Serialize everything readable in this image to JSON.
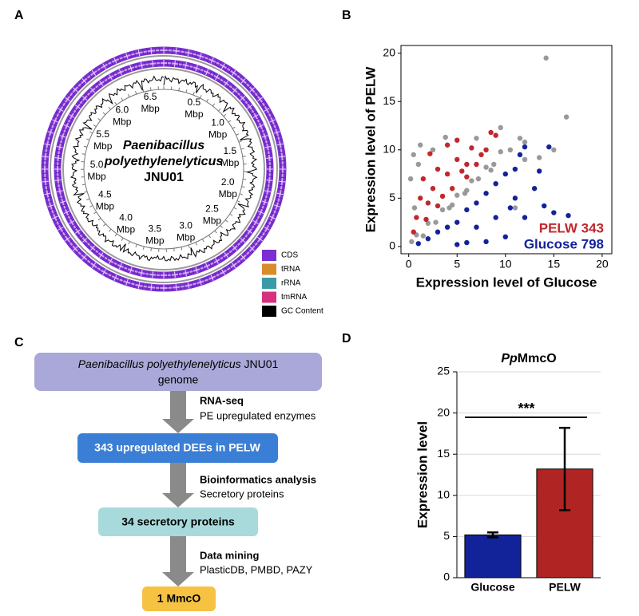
{
  "panels": [
    "A",
    "B",
    "C",
    "D"
  ],
  "genome": {
    "name_line1": "Paenibacillus",
    "name_line2": "polyethylenelyticus",
    "name_line3": "JNU01",
    "ticks": [
      "0.5",
      "1.0",
      "1.5",
      "2.0",
      "2.5",
      "3.0",
      "3.5",
      "4.0",
      "4.5",
      "5.0",
      "5.5",
      "6.0",
      "6.5"
    ],
    "tick_unit": "Mbp",
    "legend": [
      {
        "name": "CDS",
        "color": "#7b2fd0"
      },
      {
        "name": "tRNA",
        "color": "#d98c2b"
      },
      {
        "name": "rRNA",
        "color": "#3a9aa8"
      },
      {
        "name": "tmRNA",
        "color": "#d6337f"
      },
      {
        "name": "GC Content",
        "color": "#000000"
      }
    ]
  },
  "flowchart": {
    "start": {
      "italic": "Paenibacillus polyethylenelyticus",
      "rest": "JNU01",
      "line2": "genome"
    },
    "steps": [
      {
        "method": "RNA-seq",
        "detail": "PE upregulated enzymes",
        "result": "343 upregulated DEEs in PELW"
      },
      {
        "method": "Bioinformatics analysis",
        "detail": "Secretory proteins",
        "result": "34 secretory proteins"
      },
      {
        "method": "Data mining",
        "detail": "PlasticDB, PMBD, PAZY",
        "result": "1 MmcO"
      }
    ]
  },
  "chart_data": [
    {
      "type": "scatter",
      "x_label": "Expression level of Glucose",
      "y_label": "Expression level of PELW",
      "xlim": [
        -0.8,
        21
      ],
      "ylim": [
        -0.75,
        20.8
      ],
      "xticks": [
        0,
        5,
        10,
        15,
        20
      ],
      "yticks": [
        0,
        5,
        10,
        15,
        20
      ],
      "series": [
        {
          "color": "#999999",
          "x": [
            0.3,
            0.8,
            1.5,
            2,
            2.8,
            3.5,
            4.2,
            5,
            5.8,
            6.5,
            7.2,
            8,
            8.8,
            9.5,
            10.5,
            11.5,
            12,
            14.2,
            16.3,
            13.5,
            1,
            0.5,
            2.5,
            3.8,
            7,
            9.5,
            12,
            15,
            0.6,
            11,
            0.2,
            1.2,
            4.5,
            6,
            8.5
          ],
          "values": [
            0.5,
            1.2,
            1.1,
            2.4,
            2.5,
            3.8,
            4,
            5.3,
            5.5,
            6.8,
            7,
            8.2,
            8.5,
            9.8,
            10,
            11.2,
            10.8,
            19.5,
            13.4,
            9.2,
            8.5,
            9.5,
            10,
            11.3,
            11.2,
            12.3,
            9,
            10,
            4,
            4,
            7,
            10.5,
            4.3,
            5.8,
            7.9
          ]
        },
        {
          "color": "#c0282d",
          "x": [
            0.8,
            1.2,
            1.5,
            2,
            2.5,
            3,
            3.5,
            4,
            4.5,
            5,
            5.5,
            6,
            6.5,
            7,
            7.5,
            8,
            8.5,
            9,
            0.5,
            1.8,
            3,
            6,
            4,
            2.2,
            5
          ],
          "values": [
            3,
            5,
            7,
            4.5,
            6,
            8,
            5.2,
            7.5,
            6,
            9,
            7.8,
            8.5,
            10.2,
            8.5,
            9.5,
            10,
            11.8,
            11.5,
            1.5,
            2.8,
            4.2,
            7.2,
            10.5,
            9.6,
            11
          ]
        },
        {
          "color": "#12239a",
          "x": [
            1,
            2,
            3,
            4,
            5,
            6,
            7,
            8,
            9,
            10,
            11,
            11.5,
            12,
            13,
            14,
            15,
            16.5,
            12,
            10,
            8,
            6,
            9,
            11,
            13.5,
            14.5,
            7,
            5,
            10.5
          ],
          "values": [
            0.3,
            0.8,
            1.5,
            2,
            2.5,
            3.8,
            4.5,
            5.5,
            6.5,
            7.5,
            8,
            9.5,
            10.3,
            6,
            4.2,
            3.5,
            3.2,
            3,
            1,
            0.5,
            0.4,
            3,
            5,
            7.8,
            10.3,
            2,
            0.2,
            4
          ]
        }
      ],
      "annotations": [
        {
          "text": "PELW 343",
          "color": "#c0282d"
        },
        {
          "text": "Glucose 798",
          "color": "#12239a"
        }
      ]
    },
    {
      "type": "bar",
      "title_italic": "Pp",
      "title_rest": "MmcO",
      "y_label": "Expression level",
      "categories": [
        "Glucose",
        "PELW"
      ],
      "values": [
        5.2,
        13.2
      ],
      "errors": [
        0.3,
        5.0
      ],
      "colors": [
        "#12239a",
        "#b02424"
      ],
      "ylim": [
        0,
        25
      ],
      "yticks": [
        0,
        5,
        10,
        15,
        20,
        25
      ],
      "grid": true,
      "significance": "***"
    }
  ]
}
